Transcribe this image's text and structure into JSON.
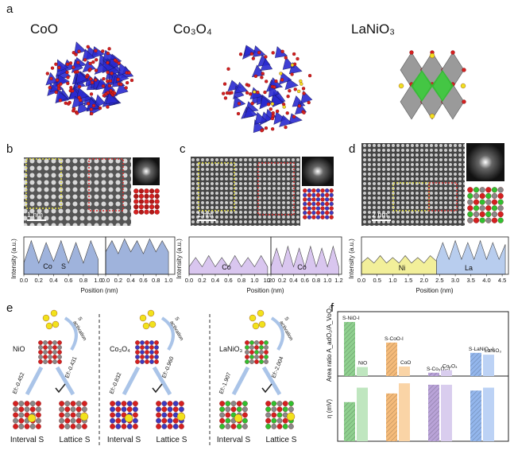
{
  "panel_labels": [
    "a",
    "b",
    "c",
    "d",
    "e",
    "f"
  ],
  "structures": [
    "CoO",
    "Co₃O₄",
    "LaNiO₃"
  ],
  "scale_bars": [
    "1 nm",
    "1 nm",
    "2 nm"
  ],
  "e": {
    "activation": [
      "S",
      "activation"
    ],
    "interval": "Interval S",
    "lattice": "Lattice S",
    "groups": [
      {
        "name": "NiO",
        "ef_interval": "Ef:-0.452",
        "ef_lattice": "Ef:-0.431"
      },
      {
        "name": "Co₃O₄",
        "ef_interval": "Ef:-0.832",
        "ef_lattice": "Ef:-0.960"
      },
      {
        "name": "LaNiO₃",
        "ef_interval": "Ef:-1.907",
        "ef_lattice": "Ef:-2.004"
      }
    ]
  },
  "chart_data": [
    {
      "type": "area",
      "ylabel": "Intensity (a.u.)",
      "xlabel": "Position (nm)",
      "annotations": [
        "Co",
        "S"
      ],
      "xlim": [
        0,
        1.1
      ],
      "xticks": [
        {
          "value": 0,
          "label": "0.0"
        },
        0.2,
        0.4,
        0.6,
        0.8,
        {
          "value": 1,
          "label": "1.0"
        }
      ],
      "ylim": [
        0,
        1
      ],
      "series": [
        {
          "color": "#9fb3dc",
          "x": [
            0,
            0.1,
            0.2,
            0.3,
            0.4,
            0.5,
            0.6,
            0.7,
            0.8,
            0.9,
            1.0
          ],
          "values": [
            0.3,
            0.9,
            0.3,
            0.85,
            0.35,
            0.9,
            0.3,
            0.85,
            0.3,
            0.9,
            0.4
          ]
        }
      ]
    },
    {
      "type": "area",
      "xlim": [
        0,
        1.1
      ],
      "xticks": [
        {
          "value": 0,
          "label": "0.0"
        },
        0.2,
        0.4,
        0.6,
        0.8,
        {
          "value": 1,
          "label": "1.0"
        }
      ],
      "ylim": [
        0,
        1
      ],
      "series": [
        {
          "color": "#9fb3dc",
          "x": [
            0,
            0.1,
            0.2,
            0.3,
            0.4,
            0.5,
            0.6,
            0.7,
            0.8,
            0.9,
            1.0
          ],
          "values": [
            0.6,
            0.9,
            0.55,
            0.95,
            0.6,
            0.9,
            0.55,
            0.95,
            0.6,
            0.9,
            0.6
          ]
        }
      ]
    },
    {
      "type": "area",
      "ylabel": "Intensity (a.u.)",
      "xlabel": "Position (nm)",
      "annotations": [
        "Co"
      ],
      "xlim": [
        0,
        1.25
      ],
      "xticks": [
        {
          "value": 0,
          "label": "0.0"
        },
        0.2,
        0.4,
        0.6,
        0.8,
        {
          "value": 1,
          "label": "1.0"
        },
        1.2
      ],
      "ylim": [
        0,
        1
      ],
      "series": [
        {
          "color": "#d9c6ef",
          "x": [
            0,
            0.1,
            0.2,
            0.3,
            0.4,
            0.5,
            0.6,
            0.7,
            0.8,
            0.9,
            1.0,
            1.1,
            1.2
          ],
          "values": [
            0.2,
            0.45,
            0.2,
            0.5,
            0.2,
            0.45,
            0.2,
            0.5,
            0.2,
            0.45,
            0.2,
            0.5,
            0.2
          ]
        }
      ]
    },
    {
      "type": "area",
      "annotations": [
        "Co"
      ],
      "xlim": [
        0,
        1.25
      ],
      "xticks": [
        {
          "value": 0,
          "label": "0.0"
        },
        0.2,
        0.4,
        0.6,
        0.8,
        {
          "value": 1,
          "label": "1.0"
        },
        1.2
      ],
      "ylim": [
        0,
        1
      ],
      "series": [
        {
          "color": "#d9c6ef",
          "x": [
            0,
            0.1,
            0.2,
            0.3,
            0.4,
            0.5,
            0.6,
            0.7,
            0.8,
            0.9,
            1.0,
            1.1,
            1.2
          ],
          "values": [
            0.2,
            0.7,
            0.2,
            0.75,
            0.2,
            0.7,
            0.2,
            0.75,
            0.2,
            0.7,
            0.2,
            0.75,
            0.2
          ]
        }
      ]
    },
    {
      "type": "area",
      "ylabel": "Intensity (a.u.)",
      "xlabel": "Position (nm)",
      "xlim": [
        0,
        4.7
      ],
      "xticks": [
        {
          "value": 0,
          "label": "0.0"
        },
        0.5,
        {
          "value": 1,
          "label": "1.0"
        },
        1.5,
        {
          "value": 2,
          "label": "2.0"
        },
        2.5,
        {
          "value": 3,
          "label": "3.0"
        },
        3.5,
        {
          "value": 4,
          "label": "4.0"
        },
        4.5
      ],
      "ylim": [
        0,
        1
      ],
      "series": [
        {
          "name": "Ni",
          "color": "#f2ef9a",
          "x": [
            0,
            0.2,
            0.4,
            0.6,
            0.8,
            1.0,
            1.2,
            1.4,
            1.6,
            1.8,
            2.0,
            2.2,
            2.4
          ],
          "values": [
            0.3,
            0.45,
            0.3,
            0.5,
            0.3,
            0.45,
            0.3,
            0.5,
            0.3,
            0.45,
            0.3,
            0.5,
            0.35
          ]
        },
        {
          "name": "La",
          "color": "#b8cdee",
          "x": [
            2.4,
            2.6,
            2.8,
            3.0,
            3.2,
            3.4,
            3.6,
            3.8,
            4.0,
            4.2,
            4.4,
            4.6
          ],
          "values": [
            0.4,
            0.85,
            0.4,
            0.9,
            0.4,
            0.85,
            0.4,
            0.9,
            0.4,
            0.85,
            0.4,
            0.8
          ]
        }
      ]
    },
    {
      "type": "bar",
      "ylabel": "Area ratio A_adO₂/A_VoO₂",
      "categories": [
        "S-NiO-I",
        "NiO",
        "S-CoO-I",
        "CoO",
        "S-Co₃O₄-I",
        "Co₃O₄",
        "S-LaNiO₃-I",
        "LaNiO₃"
      ],
      "values": [
        21,
        3.5,
        13,
        3.7,
        1.3,
        2.3,
        9,
        8.3
      ],
      "ylim": [
        0,
        25
      ],
      "colors": [
        "#8fd08f",
        "#bfe6bf",
        "#f5bb7a",
        "#fad4a6",
        "#b9a3d8",
        "#d9cdee",
        "#93b6ec",
        "#bcd2f5"
      ]
    },
    {
      "type": "bar",
      "ylabel": "η (mV)",
      "categories": [
        null,
        null,
        null,
        null,
        null,
        null,
        null,
        null
      ],
      "values": [
        270,
        370,
        330,
        400,
        390,
        390,
        350,
        370
      ],
      "ylim": [
        0,
        450
      ],
      "colors": [
        "#8fd08f",
        "#bfe6bf",
        "#f5bb7a",
        "#fad4a6",
        "#b9a3d8",
        "#d9cdee",
        "#93b6ec",
        "#bcd2f5"
      ]
    }
  ]
}
